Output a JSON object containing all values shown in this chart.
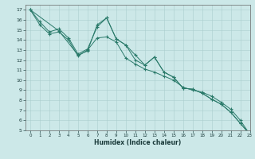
{
  "line1_x": [
    0,
    1,
    2,
    3,
    4,
    5,
    6,
    7,
    8,
    9,
    10,
    11,
    12,
    13,
    14,
    15,
    16,
    17,
    18,
    19,
    20,
    21,
    22,
    23
  ],
  "line1_y": [
    17,
    15.8,
    14.8,
    15.1,
    14.2,
    12.6,
    13.1,
    15.3,
    16.2,
    14.1,
    13.5,
    12.5,
    11.5,
    12.3,
    10.8,
    10.3,
    9.2,
    9.1,
    8.7,
    8.1,
    7.6,
    6.8,
    5.7,
    4.6
  ],
  "line2_x": [
    0,
    3,
    5,
    6,
    7,
    8,
    9,
    10,
    11,
    12,
    13,
    14,
    15,
    16,
    17,
    18,
    19,
    20,
    21,
    22,
    23
  ],
  "line2_y": [
    17,
    14.9,
    12.5,
    12.9,
    15.5,
    16.2,
    14.1,
    13.5,
    12.0,
    11.5,
    12.3,
    10.8,
    10.3,
    9.2,
    9.1,
    8.7,
    8.1,
    7.6,
    6.8,
    5.7,
    4.6
  ],
  "line3_x": [
    0,
    1,
    2,
    3,
    4,
    5,
    6,
    7,
    8,
    9,
    10,
    11,
    12,
    13,
    14,
    15,
    16,
    17,
    18,
    19,
    20,
    21,
    22,
    23
  ],
  "line3_y": [
    17,
    15.5,
    14.6,
    14.8,
    14.0,
    12.4,
    13.0,
    14.2,
    14.3,
    13.8,
    12.2,
    11.6,
    11.1,
    10.8,
    10.4,
    10.0,
    9.3,
    9.0,
    8.8,
    8.4,
    7.8,
    7.1,
    6.0,
    4.6
  ],
  "background_color": "#cce8e8",
  "grid_color": "#aacece",
  "line_color": "#2a7a6a",
  "xlabel": "Humidex (Indice chaleur)",
  "xlim": [
    -0.5,
    23
  ],
  "ylim": [
    5,
    17.5
  ],
  "xticks": [
    0,
    1,
    2,
    3,
    4,
    5,
    6,
    7,
    8,
    9,
    10,
    11,
    12,
    13,
    14,
    15,
    16,
    17,
    18,
    19,
    20,
    21,
    22,
    23
  ],
  "yticks": [
    5,
    6,
    7,
    8,
    9,
    10,
    11,
    12,
    13,
    14,
    15,
    16,
    17
  ]
}
